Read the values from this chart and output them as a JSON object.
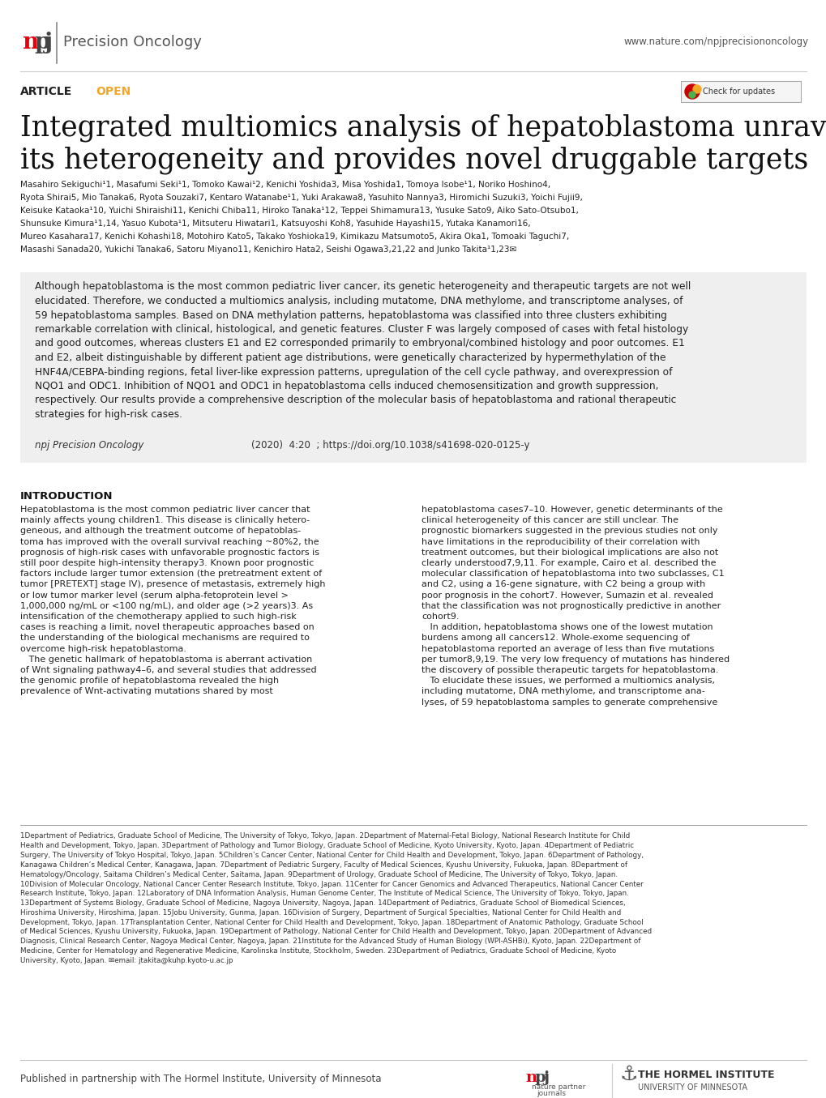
{
  "header_npj_color": "#e8000d",
  "header_journal": "Precision Oncology",
  "header_url": "www.nature.com/npjprecisiononcology",
  "article_label": "ARTICLE",
  "open_label": "OPEN",
  "open_color": "#f5a623",
  "title_line1": "Integrated multiomics analysis of hepatoblastoma unravels",
  "title_line2": "its heterogeneity and provides novel druggable targets",
  "author_lines": [
    "Masahiro Sekiguchi¹1, Masafumi Seki¹1, Tomoko Kawai¹2, Kenichi Yoshida3, Misa Yoshida1, Tomoya Isobe¹1, Noriko Hoshino4,",
    "Ryota Shirai5, Mio Tanaka6, Ryota Souzaki7, Kentaro Watanabe¹1, Yuki Arakawa8, Yasuhito Nannya3, Hiromichi Suzuki3, Yoichi Fujii9,",
    "Keisuke Kataoka¹10, Yuichi Shiraishi11, Kenichi Chiba11, Hiroko Tanaka¹12, Teppei Shimamura13, Yusuke Sato9, Aiko Sato-Otsubo1,",
    "Shunsuke Kimura¹1,14, Yasuo Kubota¹1, Mitsuteru Hiwatari1, Katsuyoshi Koh8, Yasuhide Hayashi15, Yutaka Kanamori16,",
    "Mureo Kasahara17, Kenichi Kohashi18, Motohiro Kato5, Takako Yoshioka19, Kimikazu Matsumoto5, Akira Oka1, Tomoaki Taguchi7,",
    "Masashi Sanada20, Yukichi Tanaka6, Satoru Miyano11, Kenichiro Hata2, Seishi Ogawa3,21,22 and Junko Takita¹1,23✉"
  ],
  "abstract_lines": [
    "Although hepatoblastoma is the most common pediatric liver cancer, its genetic heterogeneity and therapeutic targets are not well",
    "elucidated. Therefore, we conducted a multiomics analysis, including mutatome, DNA methylome, and transcriptome analyses, of",
    "59 hepatoblastoma samples. Based on DNA methylation patterns, hepatoblastoma was classified into three clusters exhibiting",
    "remarkable correlation with clinical, histological, and genetic features. Cluster F was largely composed of cases with fetal histology",
    "and good outcomes, whereas clusters E1 and E2 corresponded primarily to embryonal/combined histology and poor outcomes. E1",
    "and E2, albeit distinguishable by different patient age distributions, were genetically characterized by hypermethylation of the",
    "HNF4A/CEBPA-binding regions, fetal liver-like expression patterns, upregulation of the cell cycle pathway, and overexpression of",
    "NQO1 and ODC1. Inhibition of NQO1 and ODC1 in hepatoblastoma cells induced chemosensitization and growth suppression,",
    "respectively. Our results provide a comprehensive description of the molecular basis of hepatoblastoma and rational therapeutic",
    "strategies for high-risk cases."
  ],
  "citation_journal": "npj Precision Oncology",
  "citation_rest": "                                    (2020)  4:20  ; https://doi.org/10.1038/s41698-020-0125-y",
  "intro_heading": "INTRODUCTION",
  "intro_col1_lines": [
    "Hepatoblastoma is the most common pediatric liver cancer that",
    "mainly affects young children1. This disease is clinically hetero-",
    "geneous, and although the treatment outcome of hepatoblas-",
    "toma has improved with the overall survival reaching ~80%2, the",
    "prognosis of high-risk cases with unfavorable prognostic factors is",
    "still poor despite high-intensity therapy3. Known poor prognostic",
    "factors include larger tumor extension (the pretreatment extent of",
    "tumor [PRETEXT] stage IV), presence of metastasis, extremely high",
    "or low tumor marker level (serum alpha-fetoprotein level >",
    "1,000,000 ng/mL or <100 ng/mL), and older age (>2 years)3. As",
    "intensification of the chemotherapy applied to such high-risk",
    "cases is reaching a limit, novel therapeutic approaches based on",
    "the understanding of the biological mechanisms are required to",
    "overcome high-risk hepatoblastoma.",
    "   The genetic hallmark of hepatoblastoma is aberrant activation",
    "of Wnt signaling pathway4–6, and several studies that addressed",
    "the genomic profile of hepatoblastoma revealed the high",
    "prevalence of Wnt-activating mutations shared by most"
  ],
  "intro_col2_lines": [
    "hepatoblastoma cases7–10. However, genetic determinants of the",
    "clinical heterogeneity of this cancer are still unclear. The",
    "prognostic biomarkers suggested in the previous studies not only",
    "have limitations in the reproducibility of their correlation with",
    "treatment outcomes, but their biological implications are also not",
    "clearly understood7,9,11. For example, Cairo et al. described the",
    "molecular classification of hepatoblastoma into two subclasses, C1",
    "and C2, using a 16-gene signature, with C2 being a group with",
    "poor prognosis in the cohort7. However, Sumazin et al. revealed",
    "that the classification was not prognostically predictive in another",
    "cohort9.",
    "   In addition, hepatoblastoma shows one of the lowest mutation",
    "burdens among all cancers12. Whole-exome sequencing of",
    "hepatoblastoma reported an average of less than five mutations",
    "per tumor8,9,19. The very low frequency of mutations has hindered",
    "the discovery of possible therapeutic targets for hepatoblastoma.",
    "   To elucidate these issues, we performed a multiomics analysis,",
    "including mutatome, DNA methylome, and transcriptome ana-",
    "lyses, of 59 hepatoblastoma samples to generate comprehensive"
  ],
  "footnote_lines": [
    "1Department of Pediatrics, Graduate School of Medicine, The University of Tokyo, Tokyo, Japan. 2Department of Maternal-Fetal Biology, National Research Institute for Child",
    "Health and Development, Tokyo, Japan. 3Department of Pathology and Tumor Biology, Graduate School of Medicine, Kyoto University, Kyoto, Japan. 4Department of Pediatric",
    "Surgery, The University of Tokyo Hospital, Tokyo, Japan. 5Children’s Cancer Center, National Center for Child Health and Development, Tokyo, Japan. 6Department of Pathology,",
    "Kanagawa Children’s Medical Center, Kanagawa, Japan. 7Department of Pediatric Surgery, Faculty of Medical Sciences, Kyushu University, Fukuoka, Japan. 8Department of",
    "Hematology/Oncology, Saitama Children’s Medical Center, Saitama, Japan. 9Department of Urology, Graduate School of Medicine, The University of Tokyo, Tokyo, Japan.",
    "10Division of Molecular Oncology, National Cancer Center Research Institute, Tokyo, Japan. 11Center for Cancer Genomics and Advanced Therapeutics, National Cancer Center",
    "Research Institute, Tokyo, Japan. 12Laboratory of DNA Information Analysis, Human Genome Center, The Institute of Medical Science, The University of Tokyo, Tokyo, Japan.",
    "13Department of Systems Biology, Graduate School of Medicine, Nagoya University, Nagoya, Japan. 14Department of Pediatrics, Graduate School of Biomedical Sciences,",
    "Hiroshima University, Hiroshima, Japan. 15Jobu University, Gunma, Japan. 16Division of Surgery, Department of Surgical Specialties, National Center for Child Health and",
    "Development, Tokyo, Japan. 17Transplantation Center, National Center for Child Health and Development, Tokyo, Japan. 18Department of Anatomic Pathology, Graduate School",
    "of Medical Sciences, Kyushu University, Fukuoka, Japan. 19Department of Pathology, National Center for Child Health and Development, Tokyo, Japan. 20Department of Advanced",
    "Diagnosis, Clinical Research Center, Nagoya Medical Center, Nagoya, Japan. 21Institute for the Advanced Study of Human Biology (WPI-ASHBi), Kyoto, Japan. 22Department of",
    "Medicine, Center for Hematology and Regenerative Medicine, Karolinska Institute, Stockholm, Sweden. 23Department of Pediatrics, Graduate School of Medicine, Kyoto",
    "University, Kyoto, Japan. ✉email: jtakita@kuhp.kyoto-u.ac.jp"
  ],
  "published_text": "Published in partnership with The Hormel Institute, University of Minnesota",
  "background_color": "#ffffff",
  "abstract_bg_color": "#efefef",
  "divider_color": "#bbbbbb"
}
